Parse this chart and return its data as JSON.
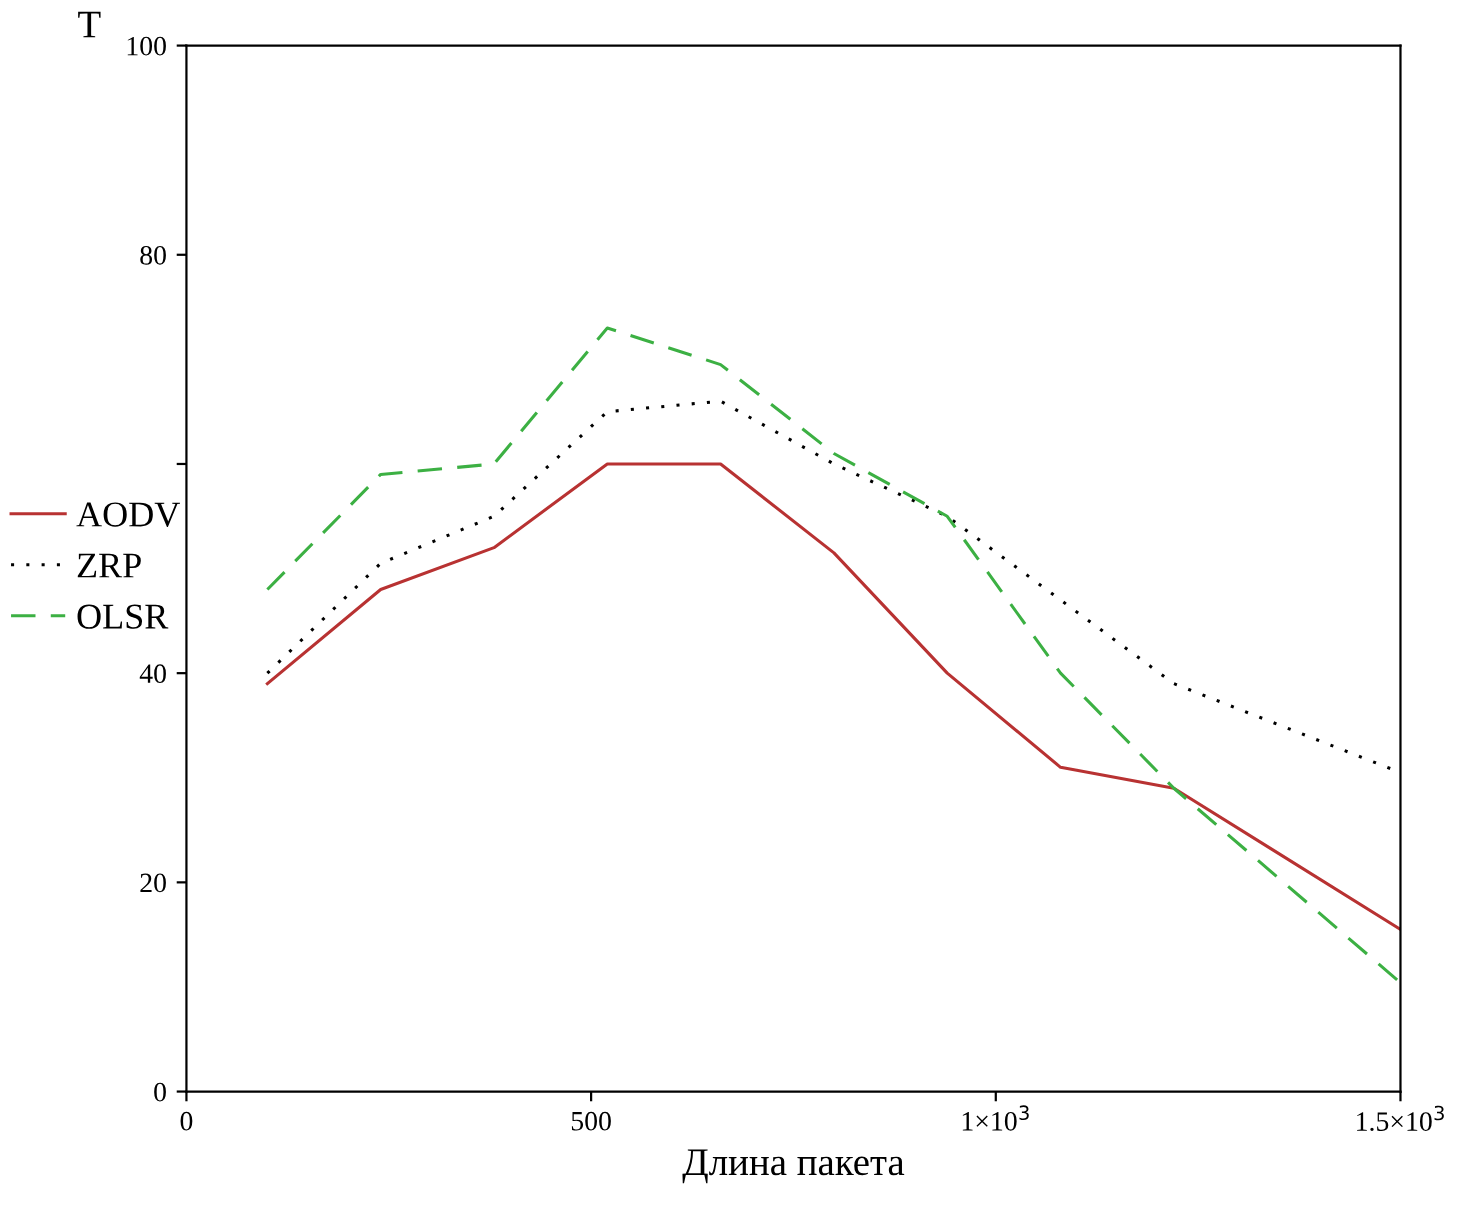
{
  "chart_data": {
    "type": "line",
    "xlabel": "Длина пакета",
    "ylabel": "T",
    "xlim": [
      0,
      1500
    ],
    "ylim": [
      0,
      100
    ],
    "xticks": [
      0,
      500,
      {
        "value": 1000,
        "label": "1×10$^{3}$"
      },
      {
        "value": 1500,
        "label": "1.5×10$^{3}$"
      }
    ],
    "yticks": [
      0,
      20,
      40,
      {
        "value": 60,
        "label": null
      },
      80,
      100
    ],
    "grid": false,
    "legend": "left",
    "x": [
      100,
      240,
      380,
      520,
      660,
      800,
      940,
      1080,
      1220,
      1500
    ],
    "series": [
      {
        "name": "AODV",
        "color": "#b83232",
        "line_style": "solid",
        "values": [
          39,
          48,
          52,
          60,
          60,
          51.5,
          40,
          31,
          29,
          15.5
        ]
      },
      {
        "name": "ZRP",
        "color": "#000000",
        "line_style": "dotted",
        "values": [
          40,
          50.5,
          55,
          65,
          66,
          60,
          55,
          47,
          39,
          30.5
        ]
      },
      {
        "name": "OLSR",
        "color": "#3cb043",
        "line_style": "dashed",
        "values": [
          48,
          59,
          60,
          73,
          69.5,
          61,
          55,
          40,
          29,
          10.4
        ]
      }
    ]
  }
}
